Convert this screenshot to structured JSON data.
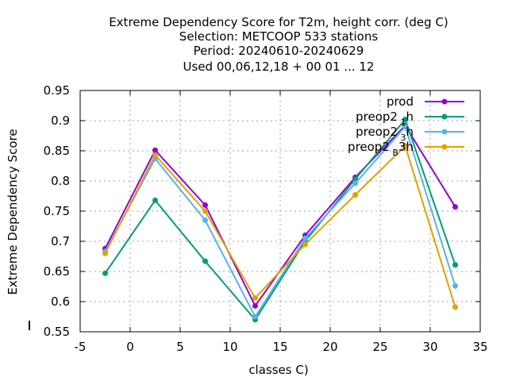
{
  "chart_data": {
    "type": "line",
    "title_lines": [
      "Extreme Dependency Score  for T2m, height corr. (deg C)",
      "Selection: METCOOP    533 stations",
      "Period: 20240610-20240629",
      "Used  00,06,12,18 + 00 01 ... 12"
    ],
    "xlabel": "classes C)",
    "ylabel": "Extreme Dependency Score",
    "xlim": [
      -5,
      35
    ],
    "ylim": [
      0.55,
      0.95
    ],
    "xticks": [
      -5,
      0,
      5,
      10,
      15,
      20,
      25,
      30,
      35
    ],
    "yticks": [
      0.55,
      0.6,
      0.65,
      0.7,
      0.75,
      0.8,
      0.85,
      0.9,
      0.95
    ],
    "x": [
      -2.5,
      2.5,
      7.5,
      12.5,
      17.5,
      22.5,
      27.5,
      32.5
    ],
    "grid": true,
    "legend_position": "top-right",
    "series": [
      {
        "name": "prod",
        "name_sub": "",
        "name_suffix": "",
        "color": "#9400d3",
        "values": [
          0.688,
          0.851,
          0.76,
          0.593,
          0.71,
          0.806,
          0.892,
          0.757
        ]
      },
      {
        "name": "preop2",
        "name_sub": "1",
        "name_suffix": "h",
        "color": "#009e73",
        "values": [
          0.647,
          0.768,
          0.667,
          0.57,
          0.7,
          0.803,
          0.902,
          0.661
        ]
      },
      {
        "name": "preop2",
        "name_sub": "3",
        "name_suffix": "h",
        "color": "#56b4e9",
        "values": [
          0.683,
          0.837,
          0.735,
          0.575,
          0.705,
          0.796,
          0.89,
          0.626
        ]
      },
      {
        "name": "preop2",
        "name_sub": "B",
        "name_suffix": "3h",
        "color": "#e69f00",
        "values": [
          0.68,
          0.843,
          0.75,
          0.606,
          0.695,
          0.777,
          0.858,
          0.591
        ]
      }
    ]
  }
}
